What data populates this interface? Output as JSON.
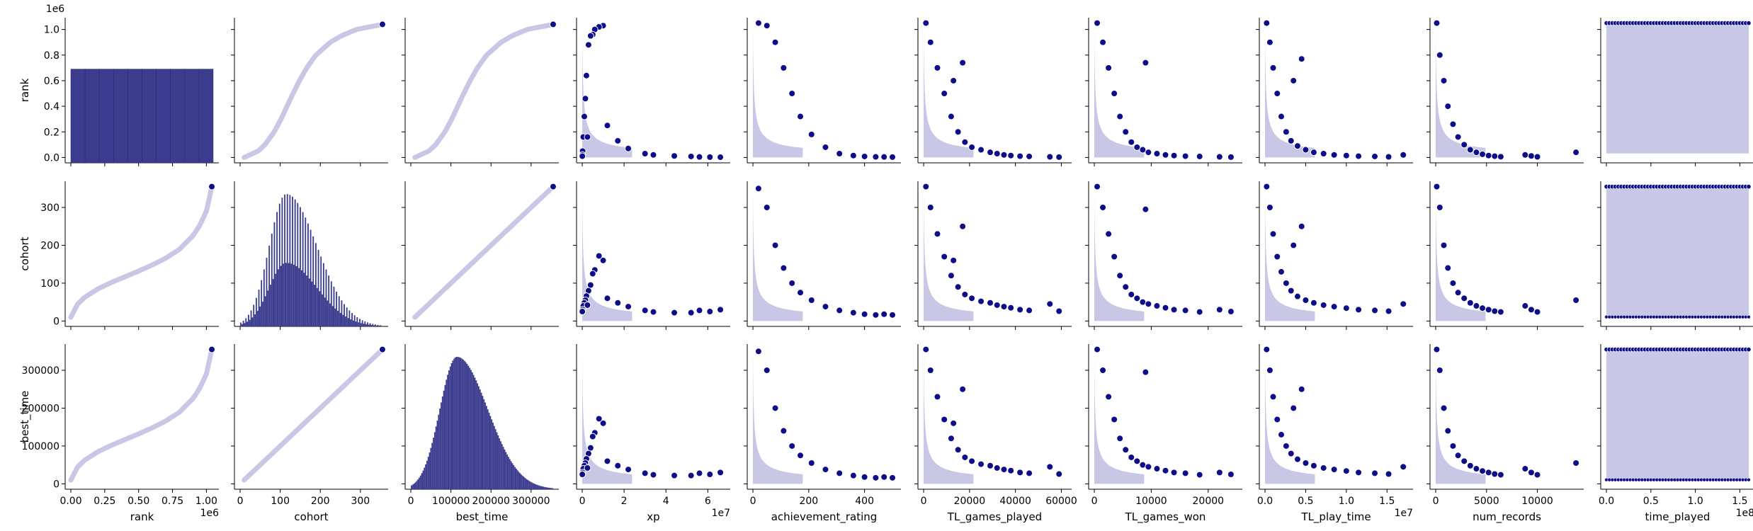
{
  "chart_data": {
    "type": "scatter",
    "subtype": "pairplot",
    "variables": [
      "rank",
      "cohort",
      "best_time",
      "xp",
      "achievement_rating",
      "TL_games_played",
      "TL_games_won",
      "TL_play_time",
      "num_records",
      "time_played"
    ],
    "row_variables": [
      "rank",
      "cohort",
      "best_time"
    ],
    "diagonal": "histogram",
    "colors": {
      "points": "#0d0d8a",
      "histogram": "#3c3c8f",
      "dense_fill": "#c8c8e6",
      "edge": "#ffffff"
    },
    "axes": {
      "rank": {
        "range": [
          0,
          1050000
        ],
        "ticks": [
          "0.00",
          "0.25",
          "0.50",
          "0.75",
          "1.00"
        ],
        "tick_values": [
          0,
          250000,
          500000,
          750000,
          1000000
        ],
        "y_ticks": [
          "0.0",
          "0.2",
          "0.4",
          "0.6",
          "0.8",
          "1.0"
        ],
        "y_tick_values": [
          0,
          200000,
          400000,
          600000,
          800000,
          1000000
        ],
        "offset": "1e6"
      },
      "cohort": {
        "range": [
          0,
          355
        ],
        "ticks": [
          "0",
          "100",
          "200",
          "300"
        ],
        "tick_values": [
          0,
          100,
          200,
          300
        ]
      },
      "best_time": {
        "range": [
          0,
          355000
        ],
        "ticks": [
          "0",
          "100000",
          "200000",
          "300000"
        ],
        "tick_values": [
          0,
          100000,
          200000,
          300000
        ]
      },
      "xp": {
        "range": [
          0,
          68000000
        ],
        "ticks": [
          "0",
          "2",
          "4",
          "6"
        ],
        "tick_values": [
          0,
          20000000,
          40000000,
          60000000
        ],
        "offset": "1e7"
      },
      "achievement_rating": {
        "range": [
          0,
          510
        ],
        "ticks": [
          "0",
          "200",
          "400"
        ],
        "tick_values": [
          0,
          200,
          400
        ]
      },
      "TL_games_played": {
        "range": [
          0,
          62000
        ],
        "ticks": [
          "0",
          "20000",
          "40000",
          "60000"
        ],
        "tick_values": [
          0,
          20000,
          40000,
          60000
        ]
      },
      "TL_games_won": {
        "range": [
          0,
          25000
        ],
        "ticks": [
          "0",
          "10000",
          "20000"
        ],
        "tick_values": [
          0,
          10000,
          20000
        ]
      },
      "TL_play_time": {
        "range": [
          0,
          17500000
        ],
        "ticks": [
          "0.0",
          "0.5",
          "1.0",
          "1.5"
        ],
        "tick_values": [
          0,
          5000000,
          10000000,
          15000000
        ],
        "offset": "1e7"
      },
      "num_records": {
        "range": [
          0,
          14000
        ],
        "ticks": [
          "0",
          "5000",
          "10000"
        ],
        "tick_values": [
          0,
          5000,
          10000
        ]
      },
      "time_played": {
        "range": [
          0,
          16000000
        ],
        "ticks": [
          "0.0",
          "0.5",
          "1.0",
          "1.5"
        ],
        "tick_values": [
          0,
          5000000,
          10000000,
          15000000
        ],
        "offset": "1e8"
      }
    },
    "relationships": {
      "rank_vs_cohort": "sigmoid, monotonic increasing",
      "cohort_vs_best_time": "linear, best_time = 1000 x cohort",
      "activity_vars": "inverse decay: high activity only at low rank/cohort/best_time; outliers to right",
      "time_played": "uniform band filling full range"
    },
    "rank_cohort_curve": {
      "rank": [
        0,
        50000,
        100000,
        200000,
        300000,
        400000,
        500000,
        600000,
        700000,
        800000,
        900000,
        950000,
        1000000,
        1040000
      ],
      "cohort": [
        10,
        45,
        62,
        85,
        102,
        117,
        132,
        148,
        166,
        189,
        225,
        252,
        290,
        355
      ]
    },
    "histograms": {
      "rank": {
        "bins": 10,
        "value": 690000,
        "note": "uniform"
      },
      "cohort": {
        "peak_x": 115,
        "peak_count": 350,
        "secondary_peak": 168,
        "note": "right-skewed, comb-like"
      },
      "best_time": {
        "peak_x": 115000,
        "peak_count": 280,
        "note": "right-skewed"
      }
    },
    "outlier_points": {
      "xp": [
        [
          10000000,
          1030000,
          160,
          160000
        ],
        [
          8000000,
          1020000,
          172,
          172000
        ],
        [
          6000000,
          1000000,
          135,
          135000
        ],
        [
          5000000,
          960000,
          125,
          125000
        ],
        [
          4000000,
          950000,
          95,
          95000
        ],
        [
          3000000,
          880000,
          80,
          80000
        ],
        [
          2000000,
          640000,
          66,
          66000
        ],
        [
          1500000,
          460000,
          55,
          55000
        ],
        [
          1000000,
          320000,
          48,
          48000
        ],
        [
          500000,
          160000,
          40,
          40000
        ],
        [
          200000,
          50000,
          30,
          30000
        ],
        [
          100000,
          20000,
          26,
          26000
        ],
        [
          50000,
          10000,
          25,
          25000
        ],
        [
          2500000,
          160000,
          42,
          42000
        ],
        [
          30000000,
          30000,
          28,
          28000
        ],
        [
          34000000,
          20000,
          24,
          24000
        ],
        [
          44000000,
          12000,
          22,
          22000
        ],
        [
          52000000,
          8000,
          22,
          22000
        ],
        [
          56000000,
          4000,
          28,
          28000
        ],
        [
          61000000,
          3000,
          25,
          25000
        ],
        [
          66000000,
          2000,
          30,
          30000
        ],
        [
          12000000,
          250000,
          60,
          60000
        ],
        [
          17000000,
          130000,
          48,
          48000
        ],
        [
          22000000,
          70000,
          38,
          38000
        ]
      ],
      "achievement_rating": [
        [
          20,
          1050000,
          350,
          350000
        ],
        [
          50,
          1030000,
          300,
          300000
        ],
        [
          80,
          900000,
          200,
          200000
        ],
        [
          110,
          700000,
          140,
          140000
        ],
        [
          140,
          500000,
          100,
          100000
        ],
        [
          170,
          320000,
          75,
          75000
        ],
        [
          210,
          180000,
          55,
          55000
        ],
        [
          260,
          80000,
          38,
          38000
        ],
        [
          310,
          30000,
          28,
          28000
        ],
        [
          360,
          15000,
          22,
          22000
        ],
        [
          400,
          8000,
          18,
          18000
        ],
        [
          440,
          5000,
          16,
          16000
        ],
        [
          470,
          4000,
          18,
          18000
        ],
        [
          500,
          3000,
          16,
          16000
        ]
      ],
      "TL_games_played": [
        [
          1000,
          1050000,
          355,
          355000
        ],
        [
          3000,
          900000,
          300,
          300000
        ],
        [
          6000,
          700000,
          230,
          230000
        ],
        [
          9000,
          500000,
          170,
          170000
        ],
        [
          12000,
          320000,
          120,
          120000
        ],
        [
          15000,
          200000,
          90,
          90000
        ],
        [
          18000,
          120000,
          70,
          70000
        ],
        [
          21000,
          80000,
          60,
          60000
        ],
        [
          25000,
          60000,
          52,
          52000
        ],
        [
          29000,
          40000,
          48,
          48000
        ],
        [
          32000,
          30000,
          42,
          42000
        ],
        [
          35000,
          20000,
          38,
          38000
        ],
        [
          38000,
          15000,
          35,
          35000
        ],
        [
          42000,
          10000,
          30,
          30000
        ],
        [
          46000,
          8000,
          28,
          28000
        ],
        [
          55000,
          5000,
          45,
          45000
        ],
        [
          59000,
          3000,
          26,
          26000
        ],
        [
          17000,
          740000,
          250,
          250000
        ],
        [
          13000,
          600000,
          160,
          160000
        ]
      ],
      "TL_games_won": [
        [
          500,
          1050000,
          355,
          355000
        ],
        [
          1500,
          900000,
          300,
          300000
        ],
        [
          2500,
          700000,
          230,
          230000
        ],
        [
          3500,
          500000,
          170,
          170000
        ],
        [
          4500,
          320000,
          120,
          120000
        ],
        [
          5500,
          200000,
          90,
          90000
        ],
        [
          6500,
          120000,
          70,
          70000
        ],
        [
          7500,
          80000,
          60,
          60000
        ],
        [
          8500,
          60000,
          50,
          50000
        ],
        [
          9500,
          40000,
          45,
          45000
        ],
        [
          11000,
          30000,
          40,
          40000
        ],
        [
          12500,
          20000,
          35,
          35000
        ],
        [
          14000,
          15000,
          30,
          30000
        ],
        [
          16000,
          10000,
          28,
          28000
        ],
        [
          18500,
          8000,
          24,
          24000
        ],
        [
          22000,
          5000,
          30,
          30000
        ],
        [
          24000,
          3000,
          25,
          25000
        ],
        [
          9000,
          740000,
          295,
          295000
        ]
      ],
      "TL_play_time": [
        [
          200000,
          1050000,
          355,
          355000
        ],
        [
          600000,
          900000,
          300,
          300000
        ],
        [
          1000000,
          700000,
          230,
          230000
        ],
        [
          1500000,
          500000,
          170,
          170000
        ],
        [
          2000000,
          320000,
          130,
          130000
        ],
        [
          2600000,
          200000,
          100,
          100000
        ],
        [
          3200000,
          130000,
          80,
          80000
        ],
        [
          4000000,
          90000,
          65,
          65000
        ],
        [
          5000000,
          60000,
          55,
          55000
        ],
        [
          6000000,
          40000,
          48,
          48000
        ],
        [
          7200000,
          30000,
          42,
          42000
        ],
        [
          8500000,
          20000,
          38,
          38000
        ],
        [
          10000000,
          15000,
          34,
          34000
        ],
        [
          11500000,
          10000,
          30,
          30000
        ],
        [
          13500000,
          8000,
          28,
          28000
        ],
        [
          15200000,
          5000,
          26,
          26000
        ],
        [
          17000000,
          20000,
          45,
          45000
        ],
        [
          4500000,
          770000,
          250,
          250000
        ],
        [
          3500000,
          600000,
          200,
          200000
        ]
      ],
      "num_records": [
        [
          100,
          1050000,
          355,
          355000
        ],
        [
          400,
          800000,
          300,
          300000
        ],
        [
          800,
          600000,
          200,
          200000
        ],
        [
          1200,
          400000,
          140,
          140000
        ],
        [
          1700,
          260000,
          100,
          100000
        ],
        [
          2200,
          160000,
          75,
          75000
        ],
        [
          2800,
          100000,
          60,
          60000
        ],
        [
          3400,
          60000,
          48,
          48000
        ],
        [
          4000,
          40000,
          40,
          40000
        ],
        [
          4600,
          25000,
          34,
          34000
        ],
        [
          5200,
          15000,
          30,
          30000
        ],
        [
          5800,
          10000,
          26,
          26000
        ],
        [
          6400,
          6000,
          24,
          24000
        ],
        [
          8800,
          20000,
          40,
          40000
        ],
        [
          9400,
          12000,
          30,
          30000
        ],
        [
          10000,
          5000,
          24,
          24000
        ],
        [
          13800,
          40000,
          55,
          55000
        ]
      ]
    }
  }
}
